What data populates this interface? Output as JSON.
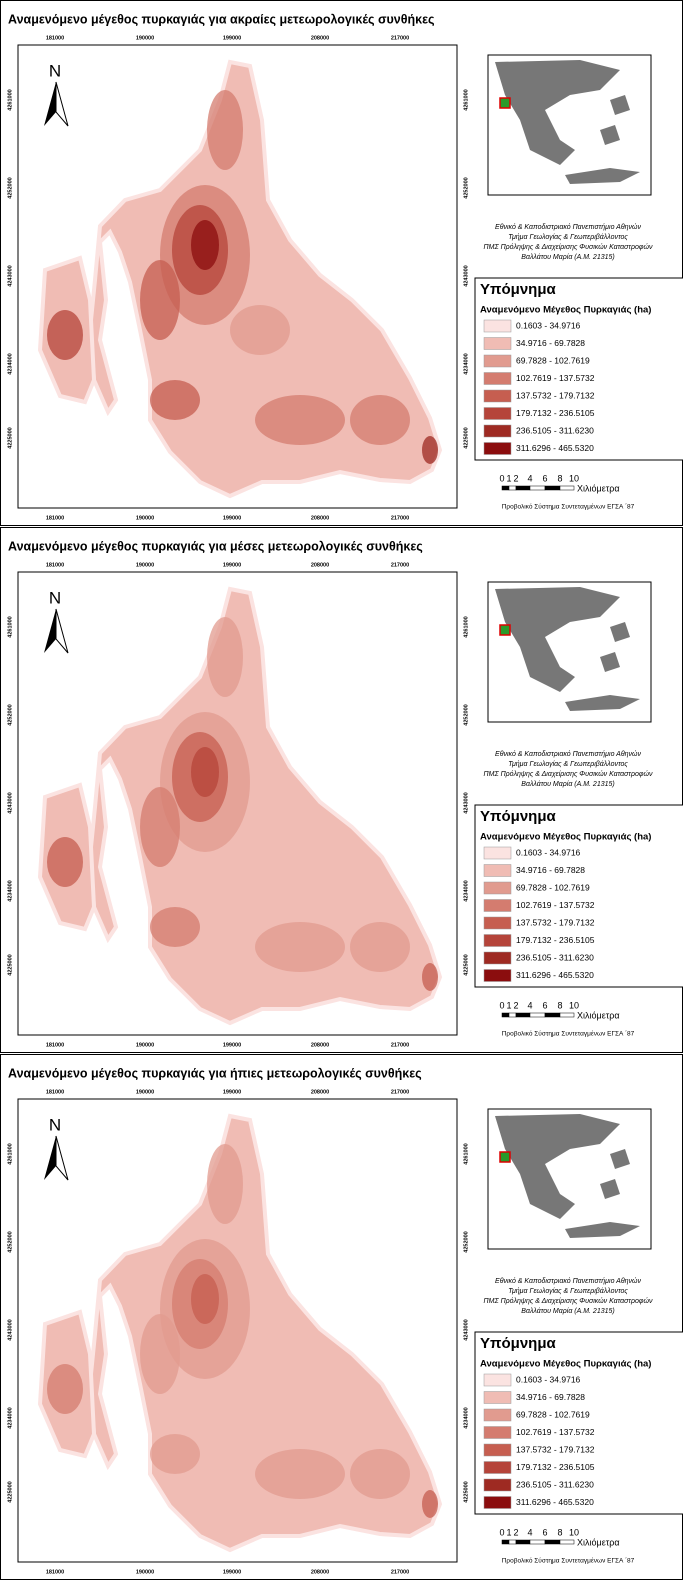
{
  "panels": [
    {
      "title": "Αναμενόμενο μέγεθος πυρκαγιάς για ακραίες μετεωρολογικές συνθήκες",
      "north": "N",
      "x_labels": [
        "181000",
        "190000",
        "199000",
        "208000",
        "217000"
      ],
      "y_labels": [
        "4261000",
        "4252000",
        "4243000",
        "4234000",
        "4225000"
      ],
      "credits": [
        "Εθνικό & Καποδιστριακό Πανεπιστήμιο Αθηνών",
        "Τμήμα Γεωλογίας & Γεωπεριβάλλοντος",
        "ΠΜΣ Πρόληψης & Διαχείρισης Φυσικών Καταστροφών",
        "Βαλλάτου Μαρία (Α.Μ. 21315)"
      ],
      "legend": {
        "title": "Υπόμνημα",
        "subtitle": "Αναμενόμενο Μέγεθος Πυρκαγιάς (ha)",
        "items": [
          {
            "label": "0.1603 - 34.9716",
            "color": "#fbe3e1"
          },
          {
            "label": "34.9716 - 69.7828",
            "color": "#f0bcb4"
          },
          {
            "label": "69.7828 - 102.7619",
            "color": "#e19b8f"
          },
          {
            "label": "102.7619 - 137.5732",
            "color": "#d47c6f"
          },
          {
            "label": "137.5732 - 179.7132",
            "color": "#c65e50"
          },
          {
            "label": "179.7132 - 236.5105",
            "color": "#b5443a"
          },
          {
            "label": "236.5105 - 311.6230",
            "color": "#9e2a22"
          },
          {
            "label": "311.6296 - 465.5320",
            "color": "#8b0d0e"
          }
        ]
      },
      "scale": {
        "labels": [
          "0",
          "1",
          "2",
          "4",
          "6",
          "8",
          "10"
        ],
        "unit": "Χιλιόμετρα"
      },
      "projection": "Προβολικό Σύστημα Συντεταγμένων ΕΓΣΑ ΄87"
    },
    {
      "title": "Αναμενόμενο μέγεθος πυρκαγιάς για μέσες μετεωρολογικές συνθήκες",
      "north": "N",
      "x_labels": [
        "181000",
        "190000",
        "199000",
        "208000",
        "217000"
      ],
      "y_labels": [
        "4261000",
        "4252000",
        "4243000",
        "4234000",
        "4225000"
      ],
      "credits": [
        "Εθνικό & Καποδιστριακό Πανεπιστήμιο Αθηνών",
        "Τμήμα Γεωλογίας & Γεωπεριβάλλοντος",
        "ΠΜΣ Πρόληψης & Διαχείρισης Φυσικών Καταστροφών",
        "Βαλλάτου Μαρία (Α.Μ. 21315)"
      ],
      "legend": {
        "title": "Υπόμνημα",
        "subtitle": "Αναμενόμενο Μέγεθος Πυρκαγιάς (ha)",
        "items": [
          {
            "label": "0.1603 - 34.9716",
            "color": "#fbe3e1"
          },
          {
            "label": "34.9716 - 69.7828",
            "color": "#f0bcb4"
          },
          {
            "label": "69.7828 - 102.7619",
            "color": "#e19b8f"
          },
          {
            "label": "102.7619 - 137.5732",
            "color": "#d47c6f"
          },
          {
            "label": "137.5732 - 179.7132",
            "color": "#c65e50"
          },
          {
            "label": "179.7132 - 236.5105",
            "color": "#b5443a"
          },
          {
            "label": "236.5105 - 311.6230",
            "color": "#9e2a22"
          },
          {
            "label": "311.6296 - 465.5320",
            "color": "#8b0d0e"
          }
        ]
      },
      "scale": {
        "labels": [
          "0",
          "1",
          "2",
          "4",
          "6",
          "8",
          "10"
        ],
        "unit": "Χιλιόμετρα"
      },
      "projection": "Προβολικό Σύστημα Συντεταγμένων ΕΓΣΑ ΄87"
    },
    {
      "title": "Αναμενόμενο μέγεθος πυρκαγιάς για ήπιες μετεωρολογικές συνθήκες",
      "north": "N",
      "x_labels": [
        "181000",
        "190000",
        "199000",
        "208000",
        "217000"
      ],
      "y_labels": [
        "4261000",
        "4252000",
        "4243000",
        "4234000",
        "4225000"
      ],
      "credits": [
        "Εθνικό & Καποδιστριακό Πανεπιστήμιο Αθηνών",
        "Τμήμα Γεωλογίας & Γεωπεριβάλλοντος",
        "ΠΜΣ Πρόληψης & Διαχείρισης Φυσικών Καταστροφών",
        "Βαλλάτου Μαρία (Α.Μ. 21315)"
      ],
      "legend": {
        "title": "Υπόμνημα",
        "subtitle": "Αναμενόμενο Μέγεθος Πυρκαγιάς (ha)",
        "items": [
          {
            "label": "0.1603 - 34.9716",
            "color": "#fbe3e1"
          },
          {
            "label": "34.9716 - 69.7828",
            "color": "#f0bcb4"
          },
          {
            "label": "69.7828 - 102.7619",
            "color": "#e19b8f"
          },
          {
            "label": "102.7619 - 137.5732",
            "color": "#d47c6f"
          },
          {
            "label": "137.5732 - 179.7132",
            "color": "#c65e50"
          },
          {
            "label": "179.7132 - 236.5105",
            "color": "#b5443a"
          },
          {
            "label": "236.5105 - 311.6230",
            "color": "#9e2a22"
          },
          {
            "label": "311.6296 - 465.5320",
            "color": "#8b0d0e"
          }
        ]
      },
      "scale": {
        "labels": [
          "0",
          "1",
          "2",
          "4",
          "6",
          "8",
          "10"
        ],
        "unit": "Χιλιόμετρα"
      },
      "projection": "Προβολικό Σύστημα Συντεταγμένων ΕΓΣΑ ΄87"
    }
  ]
}
